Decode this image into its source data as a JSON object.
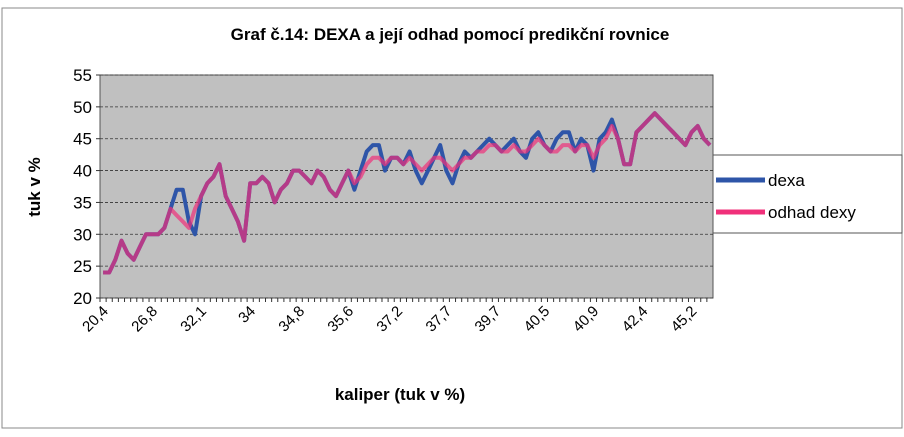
{
  "chart_data": {
    "type": "line",
    "title": "Graf č.14: DEXA a její odhad pomocí predikční rovnice",
    "x_label": "kaliper (tuk v %)",
    "y_label": "tuk v %",
    "categories": [
      "20,4",
      null,
      null,
      null,
      null,
      null,
      null,
      null,
      "26,8",
      null,
      null,
      null,
      null,
      null,
      null,
      null,
      "32,1",
      null,
      null,
      null,
      null,
      null,
      null,
      null,
      "34",
      null,
      null,
      null,
      null,
      null,
      null,
      null,
      "34,8",
      null,
      null,
      null,
      null,
      null,
      null,
      null,
      "35,6",
      null,
      null,
      null,
      null,
      null,
      null,
      null,
      "37,2",
      null,
      null,
      null,
      null,
      null,
      null,
      null,
      "37,7",
      null,
      null,
      null,
      null,
      null,
      null,
      null,
      "39,7",
      null,
      null,
      null,
      null,
      null,
      null,
      null,
      "40,5",
      null,
      null,
      null,
      null,
      null,
      null,
      null,
      "40,9",
      null,
      null,
      null,
      null,
      null,
      null,
      null,
      "42,4",
      null,
      null,
      null,
      null,
      null,
      null,
      null,
      "45,2",
      null,
      null,
      null
    ],
    "series": [
      {
        "name": "dexa",
        "color": "#2e55a8",
        "values": [
          24,
          24,
          26,
          29,
          27,
          26,
          28,
          30,
          30,
          30,
          31,
          34,
          37,
          37,
          32,
          30,
          36,
          38,
          39,
          41,
          36,
          34,
          32,
          29,
          38,
          38,
          39,
          38,
          35,
          37,
          38,
          40,
          40,
          39,
          38,
          40,
          39,
          37,
          36,
          38,
          40,
          37,
          40,
          43,
          44,
          44,
          40,
          42,
          42,
          41,
          43,
          40,
          38,
          40,
          42,
          44,
          40,
          38,
          41,
          43,
          42,
          43,
          44,
          45,
          44,
          43,
          44,
          45,
          43,
          42,
          45,
          46,
          44,
          43,
          45,
          46,
          46,
          43,
          45,
          44,
          40,
          45,
          46,
          48,
          45,
          41,
          41,
          46,
          47,
          48,
          49,
          48,
          47,
          46,
          45,
          44,
          46,
          47,
          45,
          44
        ]
      },
      {
        "name": "odhad dexy",
        "color": "#f0307a",
        "values": [
          24,
          24,
          26,
          29,
          27,
          26,
          28,
          30,
          30,
          30,
          31,
          34,
          33,
          32,
          31,
          34,
          36,
          38,
          39,
          41,
          36,
          34,
          32,
          29,
          38,
          38,
          39,
          38,
          35,
          37,
          38,
          40,
          40,
          39,
          38,
          40,
          39,
          37,
          36,
          38,
          40,
          38,
          39,
          41,
          42,
          42,
          41,
          42,
          42,
          41,
          42,
          41,
          40,
          41,
          42,
          42,
          41,
          40,
          41,
          42,
          42,
          43,
          43,
          44,
          44,
          43,
          43,
          44,
          43,
          43,
          44,
          45,
          44,
          43,
          43,
          44,
          44,
          43,
          44,
          44,
          42,
          44,
          45,
          47,
          45,
          41,
          41,
          46,
          47,
          48,
          49,
          48,
          47,
          46,
          45,
          44,
          46,
          47,
          45,
          44
        ]
      }
    ],
    "ylim": [
      20,
      55
    ],
    "yticks": [
      20,
      25,
      30,
      35,
      40,
      45,
      50,
      55
    ],
    "grid": true,
    "legend": "right"
  }
}
